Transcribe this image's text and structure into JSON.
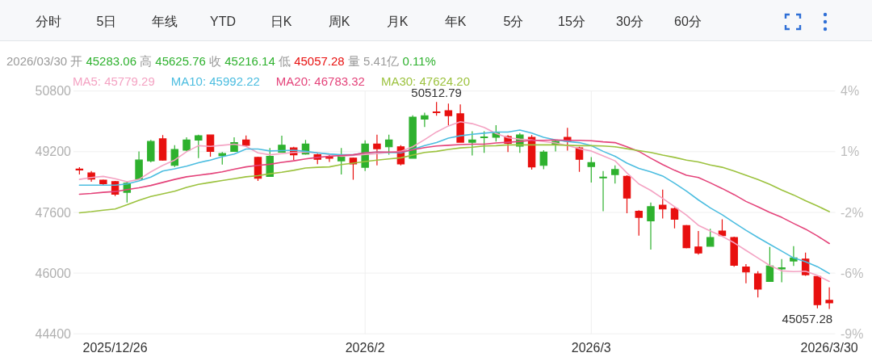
{
  "chart_data": {
    "type": "candlestick",
    "subtitle": "2026/03/30 开 45283.06 高 45625.76 收 45216.14 低 45057.28 量 5.41亿 0.11%",
    "annotations": [
      "分时",
      "5日",
      "年线",
      "YTD",
      "日K",
      "周K",
      "月K",
      "年K",
      "5分",
      "15分",
      "30分",
      "60分",
      {
        "text": "50512.79",
        "y": 50512.79
      },
      {
        "text": "45057.28",
        "x": "2026/3/30",
        "y": 45057.28
      }
    ],
    "categories": [
      null,
      null,
      null,
      "2025/12/26",
      null,
      null,
      null,
      null,
      null,
      null,
      null,
      null,
      null,
      null,
      null,
      null,
      null,
      null,
      null,
      null,
      null,
      null,
      null,
      null,
      "2026/2",
      null,
      null,
      null,
      null,
      null,
      null,
      null,
      null,
      null,
      null,
      null,
      null,
      null,
      null,
      null,
      null,
      null,
      null,
      "2026/3",
      null,
      null,
      null,
      null,
      null,
      null,
      null,
      null,
      null,
      null,
      null,
      null,
      null,
      null,
      null,
      null,
      null,
      null,
      null,
      "2026/3/30"
    ],
    "ohlc": [
      [
        48740,
        48790,
        48600,
        48720
      ],
      [
        48640,
        48690,
        48410,
        48480
      ],
      [
        48450,
        48470,
        48320,
        48360
      ],
      [
        48410,
        48430,
        48030,
        48080
      ],
      [
        48130,
        48410,
        47860,
        48370
      ],
      [
        48480,
        49210,
        48460,
        48980
      ],
      [
        48960,
        49510,
        48920,
        49470
      ],
      [
        49540,
        49640,
        48960,
        48980
      ],
      [
        48840,
        49370,
        48800,
        49260
      ],
      [
        49240,
        49580,
        49210,
        49510
      ],
      [
        49510,
        49650,
        49030,
        49620
      ],
      [
        49640,
        49650,
        49070,
        49210
      ],
      [
        49100,
        49190,
        48860,
        49150
      ],
      [
        49210,
        49580,
        49200,
        49440
      ],
      [
        49510,
        49630,
        49330,
        49370
      ],
      [
        49050,
        49070,
        48430,
        48500
      ],
      [
        48550,
        49300,
        48540,
        49080
      ],
      [
        49190,
        49620,
        49180,
        49370
      ],
      [
        49300,
        49330,
        48980,
        49120
      ],
      [
        49140,
        49510,
        49120,
        49400
      ],
      [
        49120,
        49150,
        48870,
        49000
      ],
      [
        49060,
        49120,
        48930,
        49030
      ],
      [
        48960,
        49300,
        48600,
        49080
      ],
      [
        49030,
        49050,
        48460,
        48880
      ],
      [
        48790,
        49500,
        48690,
        49400
      ],
      [
        49400,
        49650,
        48840,
        49280
      ],
      [
        49330,
        49650,
        49120,
        49510
      ],
      [
        49330,
        49370,
        48840,
        48880
      ],
      [
        49030,
        50160,
        49020,
        50110
      ],
      [
        50060,
        50230,
        49850,
        50150
      ],
      [
        50250,
        50512.79,
        50150,
        50230
      ],
      [
        50280,
        50470,
        49900,
        50150
      ],
      [
        50200,
        50450,
        49440,
        49450
      ],
      [
        49450,
        49740,
        49100,
        49510
      ],
      [
        49570,
        49740,
        49170,
        49590
      ],
      [
        49580,
        49900,
        49470,
        49690
      ],
      [
        49600,
        49640,
        49190,
        49420
      ],
      [
        49350,
        49690,
        49170,
        49640
      ],
      [
        49580,
        49640,
        48730,
        48800
      ],
      [
        48840,
        49240,
        48740,
        49190
      ],
      [
        49400,
        49510,
        49210,
        49470
      ],
      [
        49580,
        49830,
        49230,
        49480
      ],
      [
        49300,
        49330,
        48670,
        49000
      ],
      [
        48810,
        49060,
        48390,
        48910
      ],
      [
        48510,
        48690,
        47630,
        48530
      ],
      [
        48600,
        48840,
        48360,
        48730
      ],
      [
        48550,
        48580,
        47580,
        47980
      ],
      [
        47630,
        47660,
        46990,
        47470
      ],
      [
        47380,
        47860,
        46620,
        47750
      ],
      [
        47790,
        48200,
        47440,
        47690
      ],
      [
        47700,
        47730,
        47180,
        47420
      ],
      [
        47250,
        47270,
        46650,
        46670
      ],
      [
        46690,
        47110,
        46490,
        46530
      ],
      [
        46710,
        47170,
        46700,
        46940
      ],
      [
        47110,
        47420,
        46970,
        46990
      ],
      [
        46940,
        46960,
        46170,
        46210
      ],
      [
        46160,
        46240,
        45730,
        46030
      ],
      [
        45980,
        46050,
        45360,
        45580
      ],
      [
        45780,
        46690,
        45770,
        46190
      ],
      [
        46110,
        46370,
        45760,
        46140
      ],
      [
        46320,
        46710,
        46190,
        46400
      ],
      [
        46370,
        46540,
        45930,
        45960
      ],
      [
        45910,
        45930,
        45070,
        45170
      ],
      [
        45283.06,
        45625.76,
        45057.28,
        45216.14
      ]
    ],
    "colors": [
      "#e8100f",
      "#e8100f",
      "#e8100f",
      "#e8100f",
      "#2eb12e",
      "#2eb12e",
      "#2eb12e",
      "#e8100f",
      "#2eb12e",
      "#2eb12e",
      "#2eb12e",
      "#e8100f",
      "#2eb12e",
      "#2eb12e",
      "#e8100f",
      "#e8100f",
      "#2eb12e",
      "#2eb12e",
      "#e8100f",
      "#2eb12e",
      "#e8100f",
      "#e8100f",
      "#2eb12e",
      "#e8100f",
      "#2eb12e",
      "#e8100f",
      "#2eb12e",
      "#e8100f",
      "#2eb12e",
      "#2eb12e",
      "#e8100f",
      "#e8100f",
      "#e8100f",
      "#2eb12e",
      "#2eb12e",
      "#2eb12e",
      "#e8100f",
      "#2eb12e",
      "#e8100f",
      "#2eb12e",
      "#2eb12e",
      "#e8100f",
      "#e8100f",
      "#2eb12e",
      "#2eb12e",
      "#2eb12e",
      "#e8100f",
      "#e8100f",
      "#2eb12e",
      "#e8100f",
      "#e8100f",
      "#e8100f",
      "#e8100f",
      "#2eb12e",
      "#e8100f",
      "#e8100f",
      "#e8100f",
      "#e8100f",
      "#2eb12e",
      "#2eb12e",
      "#2eb12e",
      "#e8100f",
      "#e8100f",
      "#e8100f"
    ],
    "series": [
      {
        "name": "MA5: 45779.29",
        "type": "line",
        "color": "#f4a3c3",
        "values": [
          48470,
          48520,
          48550,
          48490,
          48410,
          48470,
          48670,
          48840,
          48980,
          49200,
          49360,
          49340,
          49370,
          49400,
          49340,
          49170,
          49120,
          49150,
          49180,
          49190,
          49170,
          49130,
          49080,
          49100,
          49130,
          49150,
          49180,
          49210,
          49330,
          49520,
          49720,
          49880,
          49990,
          49940,
          49840,
          49680,
          49570,
          49530,
          49510,
          49470,
          49430,
          49360,
          49280,
          49220,
          49090,
          48960,
          48640,
          48350,
          48180,
          47970,
          47750,
          47530,
          47260,
          47110,
          46970,
          46800,
          46600,
          46400,
          46200,
          46060,
          46040,
          46050,
          45940,
          45780
        ]
      },
      {
        "name": "MA10: 45992.22",
        "type": "line",
        "color": "#4cbde0",
        "values": [
          48320,
          48320,
          48320,
          48320,
          48350,
          48430,
          48530,
          48690,
          48750,
          48820,
          48910,
          48980,
          49070,
          49140,
          49270,
          49270,
          49220,
          49230,
          49240,
          49210,
          49170,
          49140,
          49120,
          49120,
          49170,
          49190,
          49180,
          49170,
          49260,
          49360,
          49440,
          49560,
          49620,
          49660,
          49690,
          49720,
          49720,
          49770,
          49690,
          49580,
          49510,
          49470,
          49440,
          49360,
          49210,
          49080,
          48900,
          48760,
          48670,
          48560,
          48370,
          48160,
          47930,
          47720,
          47540,
          47330,
          47130,
          46940,
          46760,
          46580,
          46400,
          46300,
          46170,
          45990
        ]
      },
      {
        "name": "MA20: 46783.32",
        "type": "line",
        "color": "#e4437a",
        "values": [
          48080,
          48100,
          48130,
          48150,
          48200,
          48250,
          48310,
          48390,
          48470,
          48540,
          48580,
          48620,
          48670,
          48740,
          48800,
          48840,
          48870,
          48920,
          48960,
          49010,
          49050,
          49080,
          49100,
          49120,
          49170,
          49190,
          49190,
          49190,
          49250,
          49310,
          49350,
          49370,
          49390,
          49400,
          49400,
          49430,
          49450,
          49470,
          49500,
          49500,
          49510,
          49500,
          49500,
          49490,
          49460,
          49440,
          49330,
          49210,
          49030,
          48860,
          48710,
          48580,
          48520,
          48380,
          48230,
          48070,
          47890,
          47750,
          47600,
          47470,
          47310,
          47160,
          46980,
          46780
        ]
      },
      {
        "name": "MA30: 47624.20",
        "type": "line",
        "color": "#9cc23e",
        "values": [
          47590,
          47620,
          47660,
          47690,
          47800,
          47920,
          48020,
          48090,
          48160,
          48260,
          48340,
          48390,
          48440,
          48490,
          48540,
          48570,
          48620,
          48660,
          48710,
          48770,
          48790,
          48800,
          48860,
          48900,
          48940,
          48980,
          49010,
          49040,
          49110,
          49180,
          49210,
          49260,
          49300,
          49320,
          49350,
          49360,
          49380,
          49380,
          49380,
          49380,
          49380,
          49370,
          49360,
          49360,
          49350,
          49330,
          49280,
          49230,
          49180,
          49110,
          49050,
          48980,
          48930,
          48850,
          48790,
          48690,
          48580,
          48470,
          48340,
          48190,
          48060,
          47910,
          47770,
          47620
        ]
      }
    ],
    "ylim": [
      44400,
      50800
    ],
    "yticks": [
      44400,
      46000,
      47600,
      49200,
      50800
    ],
    "y2lim": [
      -8.9,
      4.3
    ],
    "y2ticks": [
      {
        "value": -8.9,
        "label": "-9%"
      },
      {
        "value": -5.6,
        "label": "-6%"
      },
      {
        "value": -2.3,
        "label": "-2%"
      },
      {
        "value": 1.0,
        "label": "1%"
      },
      {
        "value": 4.3,
        "label": "4%"
      }
    ],
    "grid": "y",
    "ref_lines": [
      {
        "axis": "x",
        "value": "2026/2",
        "color": "#eeeeee"
      },
      {
        "axis": "x",
        "value": "2026/3",
        "color": "#eeeeee"
      }
    ]
  }
}
